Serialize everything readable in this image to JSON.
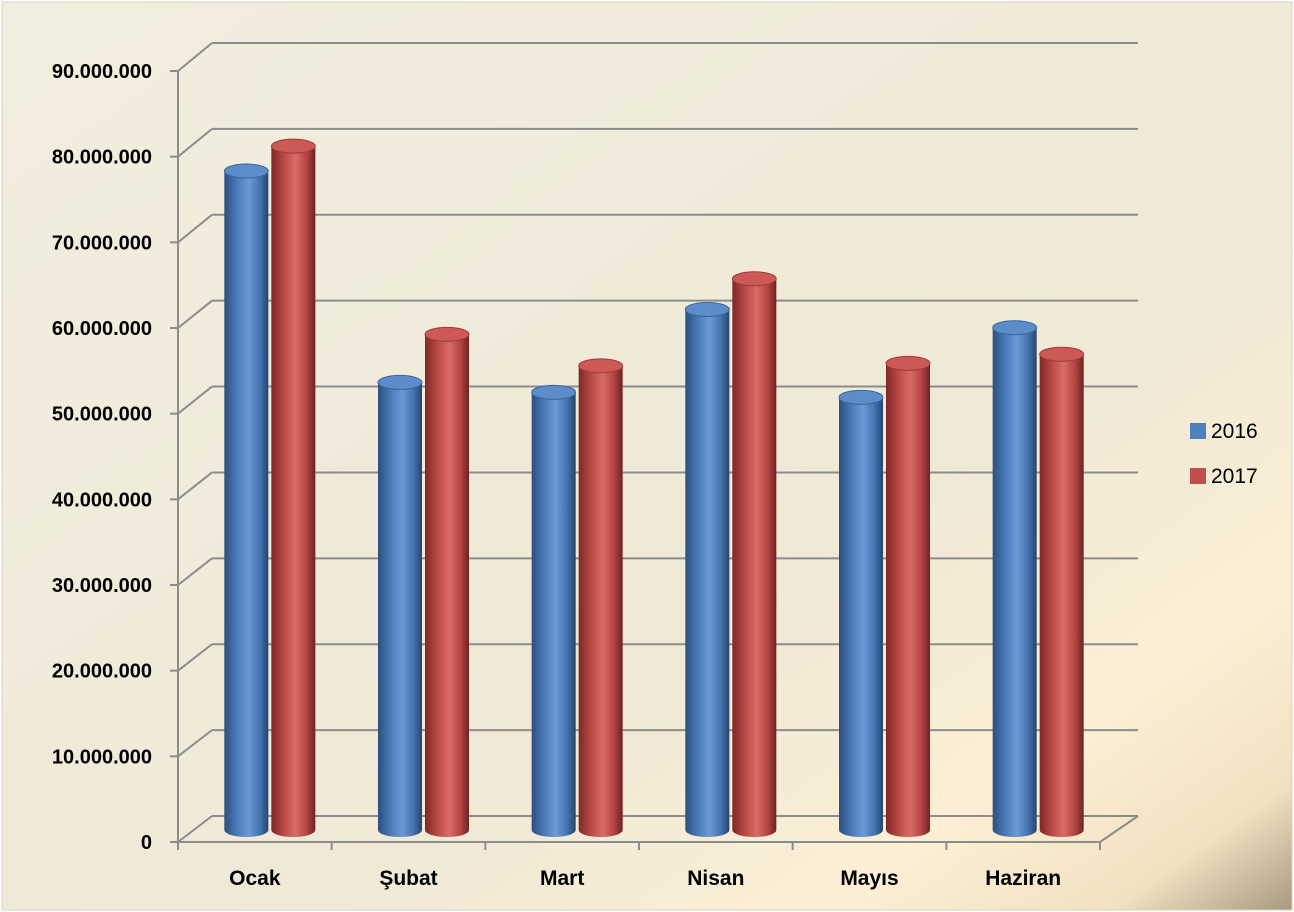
{
  "chart_data": {
    "type": "bar",
    "title": "",
    "xlabel": "",
    "ylabel": "",
    "categories": [
      "Ocak",
      "Şubat",
      "Mart",
      "Nisan",
      "Mayıs",
      "Haziran"
    ],
    "series": [
      {
        "name": "2016",
        "color": "#4f81bd",
        "values": [
          79500000,
          54000000,
          52800000,
          62800000,
          52200000,
          60600000
        ]
      },
      {
        "name": "2017",
        "color": "#c0504d",
        "values": [
          82500000,
          59800000,
          56000000,
          66500000,
          56300000,
          57400000
        ]
      }
    ],
    "ylim": [
      0,
      90000000
    ],
    "yticks": [
      {
        "value": 0,
        "label": "0"
      },
      {
        "value": 10000000,
        "label": "10.000.000"
      },
      {
        "value": 20000000,
        "label": "20.000.000"
      },
      {
        "value": 30000000,
        "label": "30.000.000"
      },
      {
        "value": 40000000,
        "label": "40.000.000"
      },
      {
        "value": 50000000,
        "label": "50.000.000"
      },
      {
        "value": 60000000,
        "label": "60.000.000"
      },
      {
        "value": 70000000,
        "label": "70.000.000"
      },
      {
        "value": 80000000,
        "label": "80.000.000"
      },
      {
        "value": 90000000,
        "label": "90.000.000"
      }
    ],
    "grid": true,
    "legend_position": "right",
    "style": "3d-cylinder",
    "background": "#f0ebd8"
  }
}
